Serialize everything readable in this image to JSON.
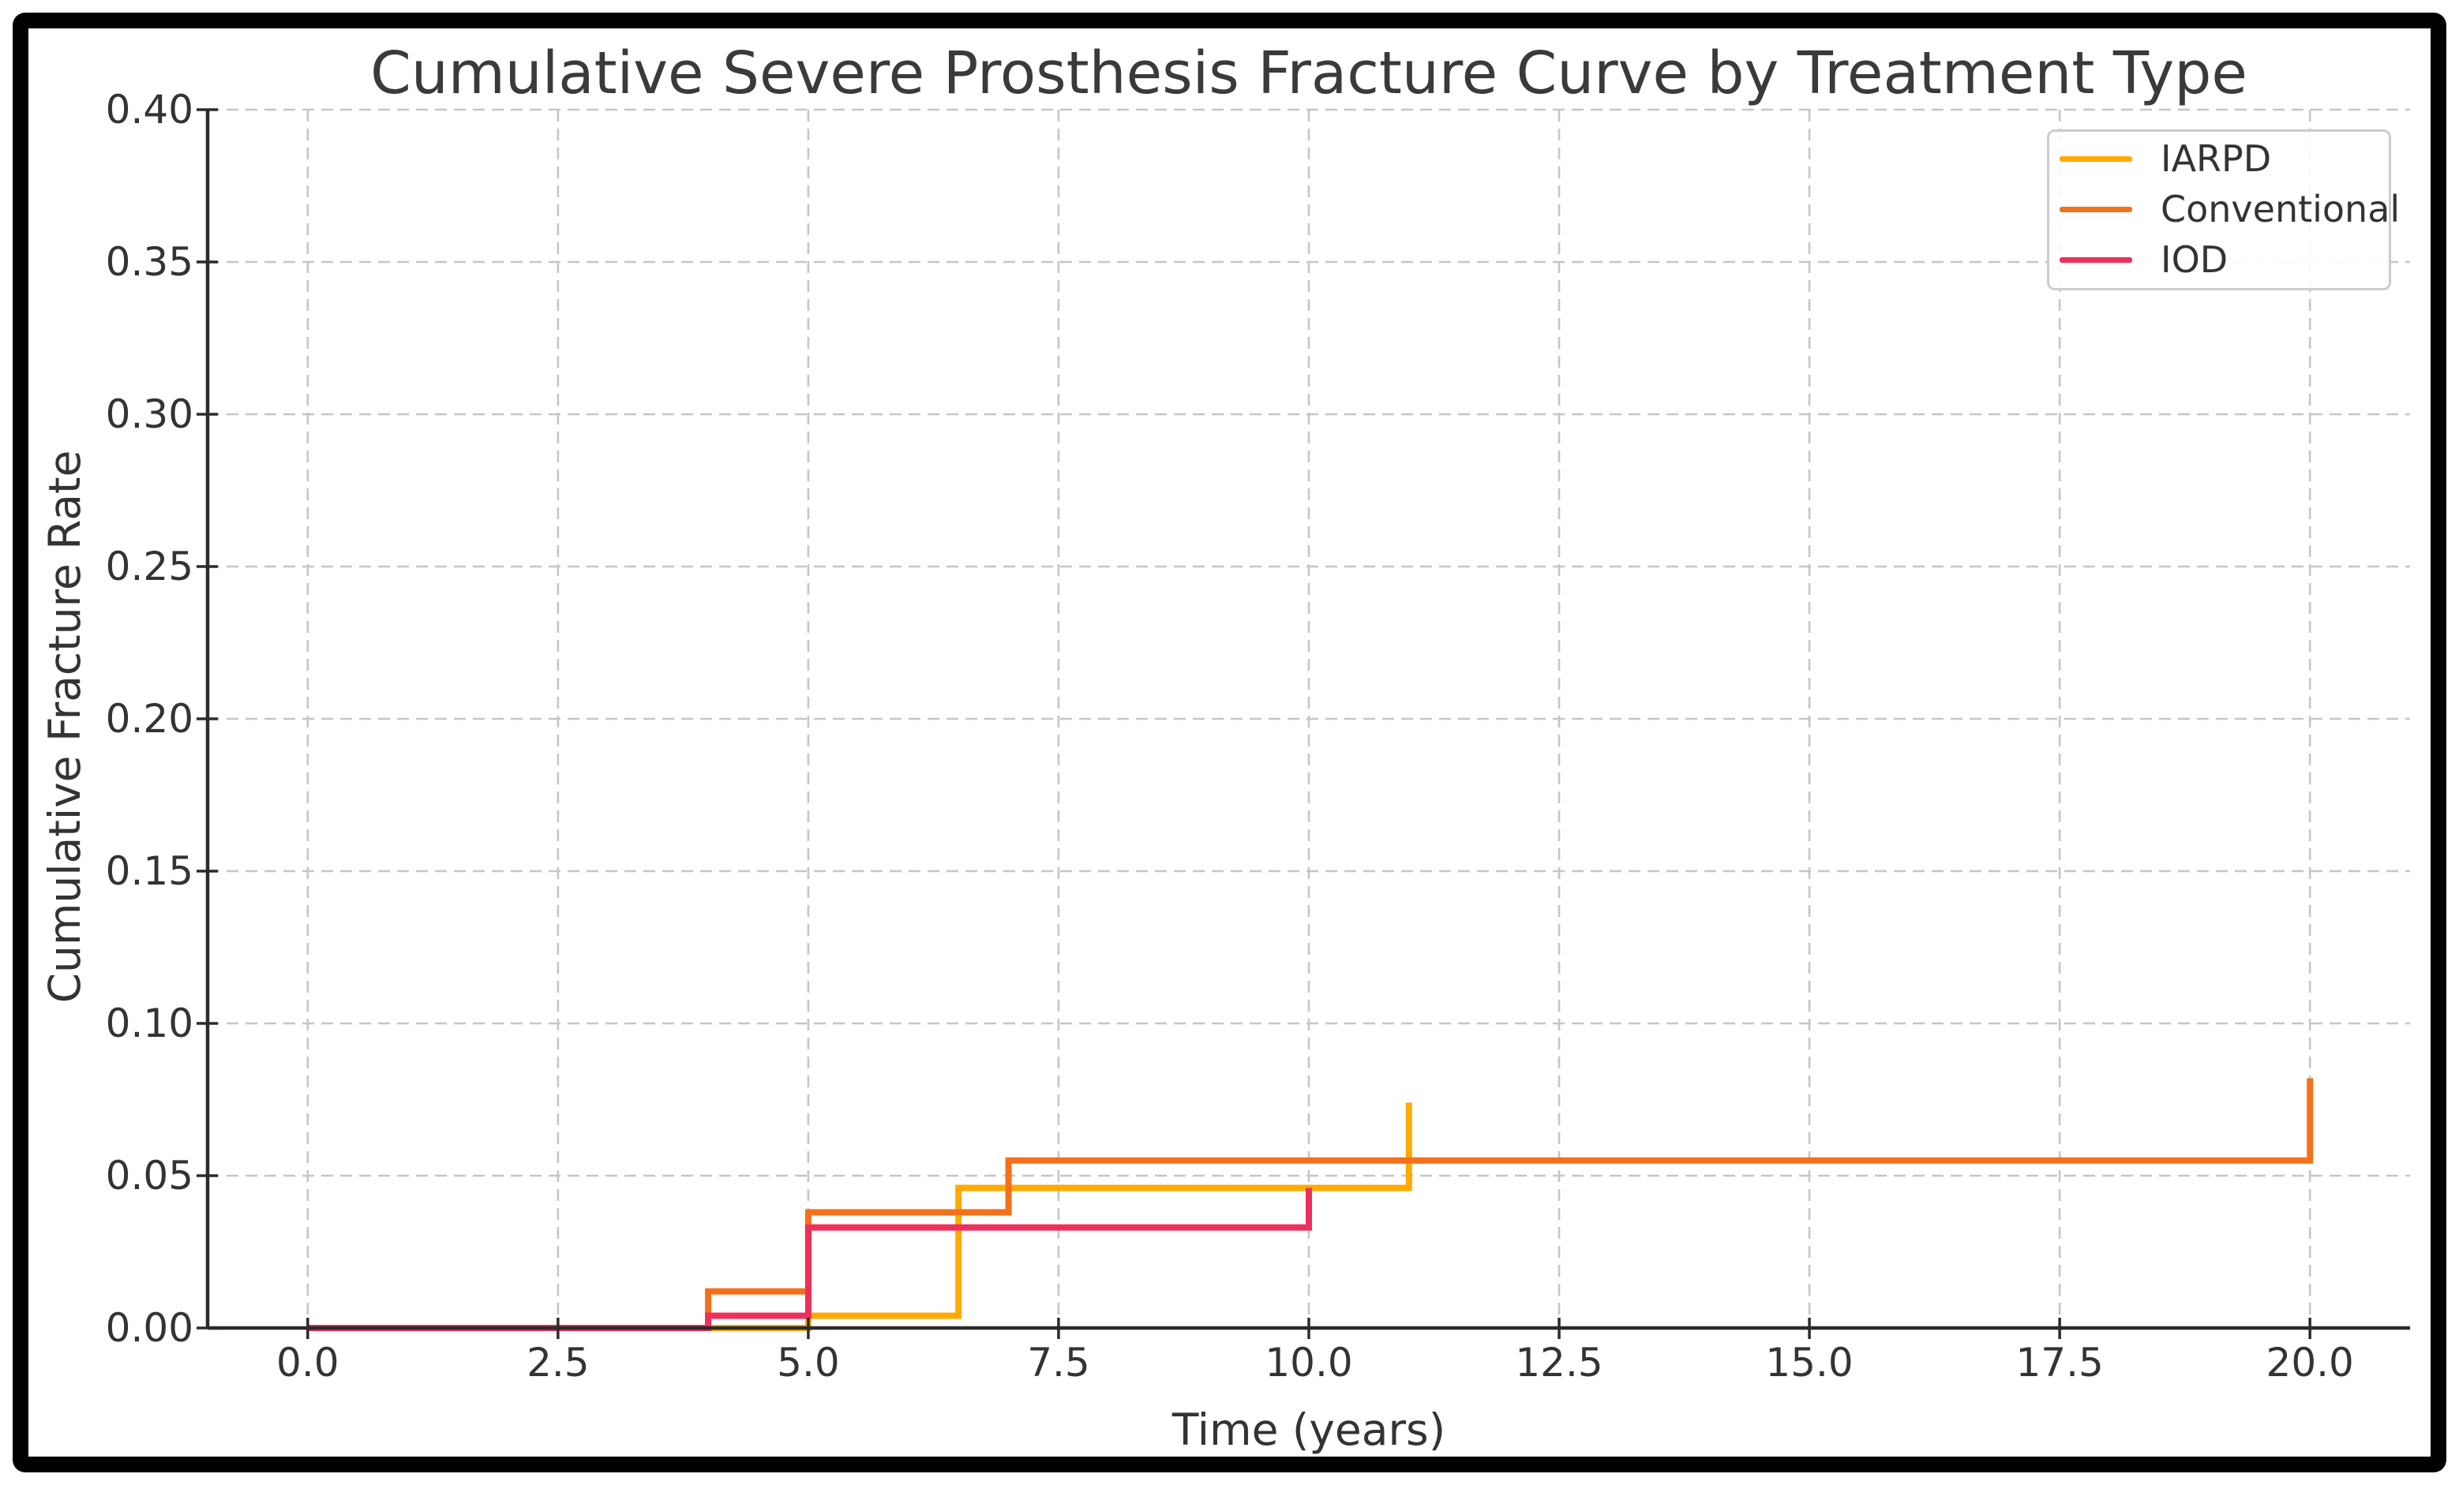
{
  "chart_data": {
    "type": "line",
    "step_style": "post",
    "title": "Cumulative Severe Prosthesis Fracture Curve by Treatment Type",
    "xlabel": "Time (years)",
    "ylabel": "Cumulative Fracture Rate",
    "xlim": [
      -1,
      21
    ],
    "ylim": [
      0.0,
      0.4
    ],
    "x_ticks": [
      0.0,
      2.5,
      5.0,
      7.5,
      10.0,
      12.5,
      15.0,
      17.5,
      20.0
    ],
    "x_tick_labels": [
      "0.0",
      "2.5",
      "5.0",
      "7.5",
      "10.0",
      "12.5",
      "15.0",
      "17.5",
      "20.0"
    ],
    "y_ticks": [
      0.0,
      0.05,
      0.1,
      0.15,
      0.2,
      0.25,
      0.3,
      0.35,
      0.4
    ],
    "y_tick_labels": [
      "0.00",
      "0.05",
      "0.10",
      "0.15",
      "0.20",
      "0.25",
      "0.30",
      "0.35",
      "0.40"
    ],
    "grid": {
      "visible": true,
      "style": "dashed"
    },
    "legend_position": "upper right",
    "series": [
      {
        "name": "IARPD",
        "color": "#FFAA00",
        "path": [
          [
            0,
            0
          ],
          [
            5,
            0
          ],
          [
            5,
            0.004
          ],
          [
            6.5,
            0.004
          ],
          [
            6.5,
            0.046
          ],
          [
            11,
            0.046
          ],
          [
            11,
            0.074
          ]
        ]
      },
      {
        "name": "Conventional",
        "color": "#F4701A",
        "path": [
          [
            0,
            0
          ],
          [
            4,
            0
          ],
          [
            4,
            0.012
          ],
          [
            5,
            0.012
          ],
          [
            5,
            0.038
          ],
          [
            7,
            0.038
          ],
          [
            7,
            0.055
          ],
          [
            20,
            0.055
          ],
          [
            20,
            0.082
          ]
        ]
      },
      {
        "name": "IOD",
        "color": "#ED2F5B",
        "path": [
          [
            0,
            0
          ],
          [
            4,
            0
          ],
          [
            4,
            0.004
          ],
          [
            5,
            0.004
          ],
          [
            5,
            0.033
          ],
          [
            10,
            0.033
          ],
          [
            10,
            0.046
          ]
        ]
      }
    ]
  },
  "legend": {
    "items": [
      {
        "label": "IARPD",
        "color": "#FFAA00"
      },
      {
        "label": "Conventional",
        "color": "#F4701A"
      },
      {
        "label": "IOD",
        "color": "#ED2F5B"
      }
    ]
  },
  "style": {
    "background": "#ffffff",
    "frame_color": "#000000",
    "title_color": "#3a3a3a",
    "text_color": "#333333",
    "spine_color": "#2b2b2b",
    "grid_color": "#c6c6c6"
  }
}
